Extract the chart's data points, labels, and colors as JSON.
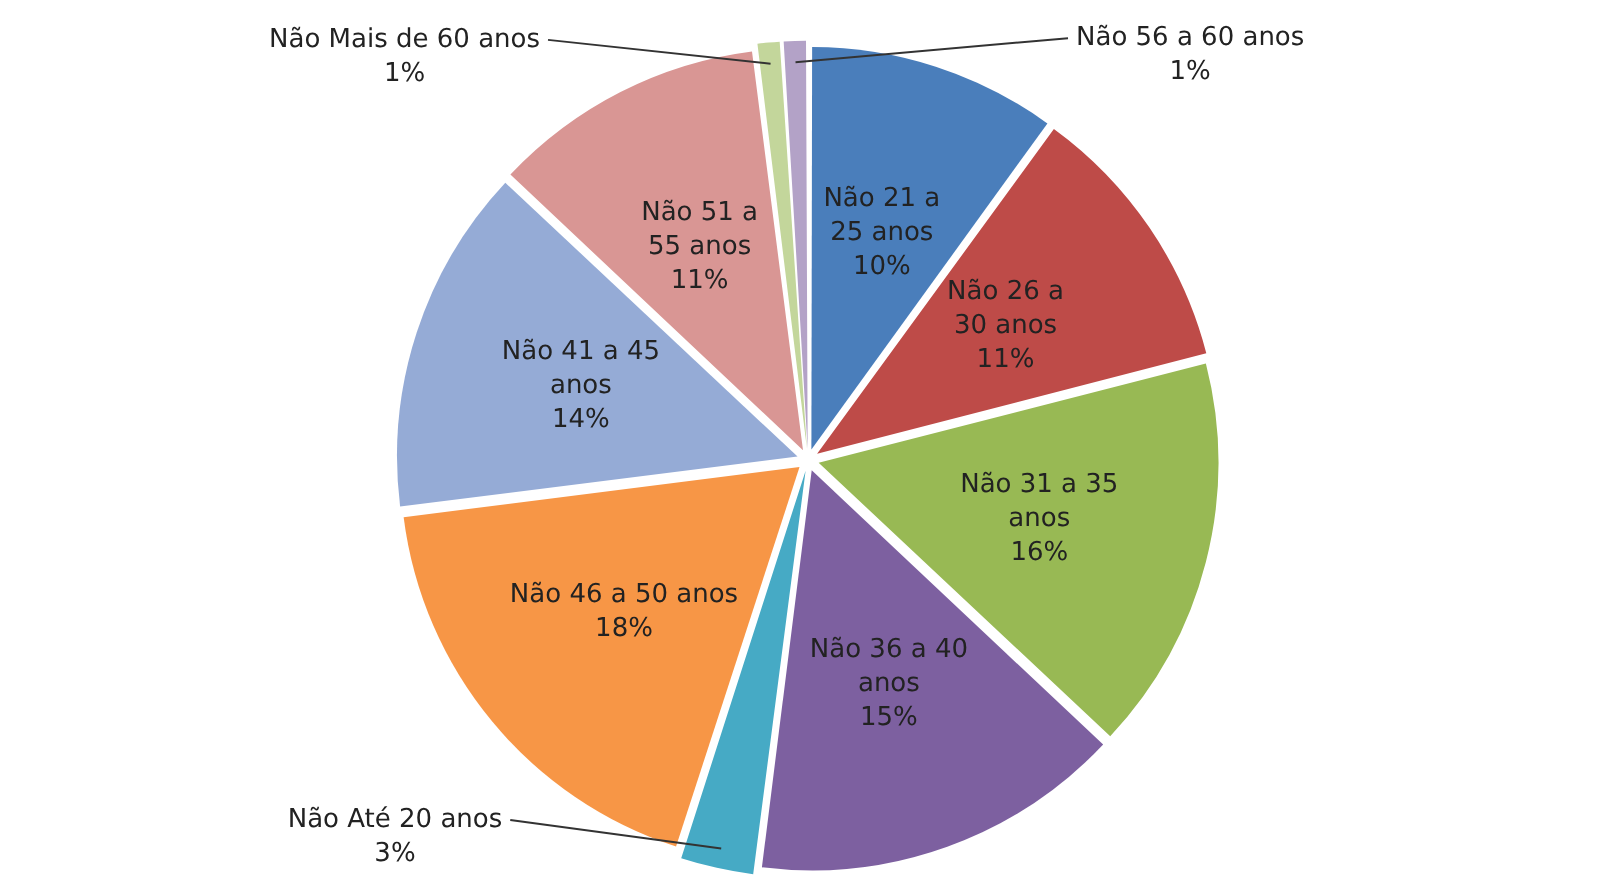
{
  "chart_data": {
    "type": "pie",
    "categories": [
      "Não 21 a 25 anos",
      "Não 26 a 30 anos",
      "Não 31 a 35 anos",
      "Não 36 a 40 anos",
      "Não Até 20 anos",
      "Não 46 a 50 anos",
      "Não 41 a 45 anos",
      "Não 51 a 55 anos",
      "Não Mais de 60 anos",
      "Não 56 a 60 anos"
    ],
    "values": [
      10,
      11,
      16,
      15,
      3,
      18,
      14,
      11,
      1,
      1
    ],
    "colors": [
      "#4a7ebb",
      "#be4b48",
      "#98b954",
      "#7d60a0",
      "#46aac5",
      "#f79646",
      "#95abd6",
      "#d99694",
      "#c3d69b",
      "#b3a2c7"
    ],
    "value_labels": [
      "10%",
      "11%",
      "16%",
      "15%",
      "3%",
      "18%",
      "14%",
      "11%",
      "1%",
      "1%"
    ],
    "legend": false
  }
}
